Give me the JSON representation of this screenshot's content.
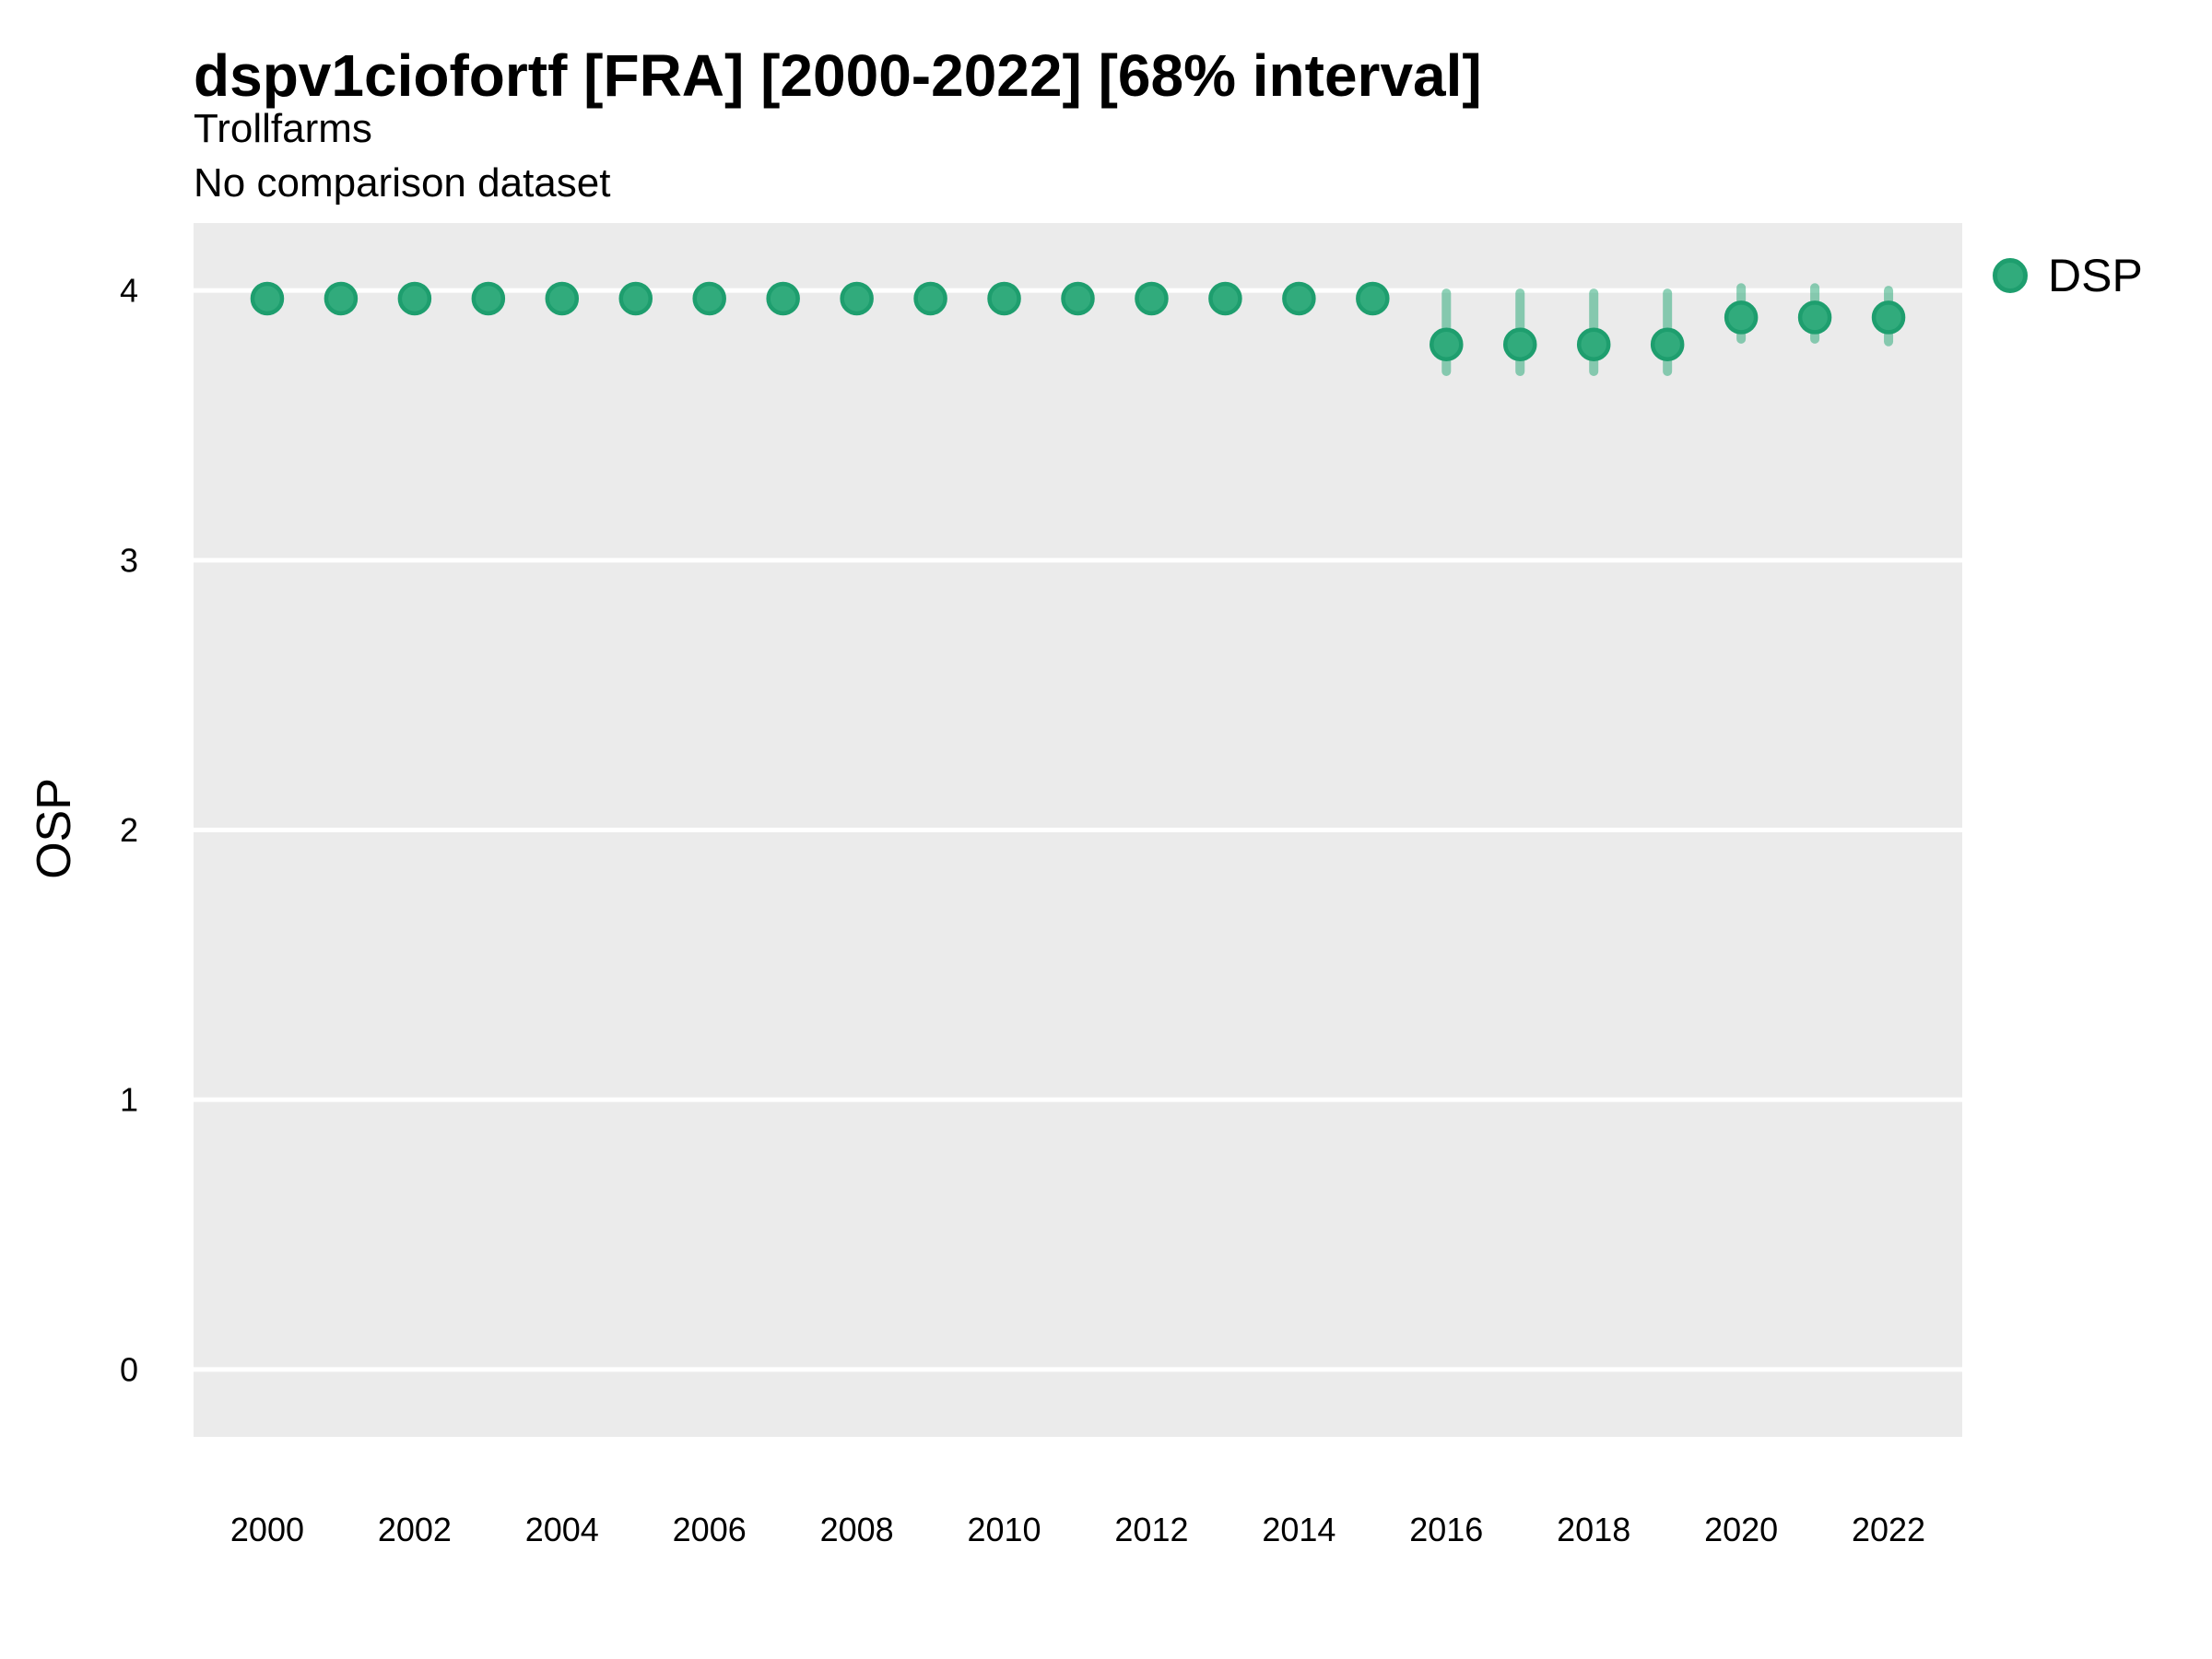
{
  "header": {
    "title": "dspv1ciofortf [FRA] [2000-2022] [68% interval]",
    "subtitle": "Trollfarms",
    "note": "No comparison dataset"
  },
  "legend": {
    "label": "DSP",
    "position": "right"
  },
  "colors": {
    "point_fill": "#31AB7C",
    "point_stroke": "#1E9E6E",
    "interval_line": "rgba(49,171,124,0.55)",
    "plot_background": "#EBEBEB",
    "gridline": "#FFFFFF",
    "text": "#000000"
  },
  "chart_data": {
    "type": "scatter",
    "title": "dspv1ciofortf [FRA] [2000-2022] [68% interval]",
    "subtitle": "Trollfarms",
    "note": "No comparison dataset",
    "xlabel": "",
    "ylabel": "OSP",
    "x_domain": [
      1999,
      2023
    ],
    "y_domain": [
      -0.25,
      4.25
    ],
    "x_ticks": [
      2000,
      2002,
      2004,
      2006,
      2008,
      2010,
      2012,
      2014,
      2016,
      2018,
      2020,
      2022
    ],
    "y_ticks": [
      0,
      1,
      2,
      3,
      4
    ],
    "grid": "major-horizontal-only",
    "legend_position": "right",
    "series": [
      {
        "name": "DSP",
        "marker": "circle",
        "interval_label": "68% interval",
        "x": [
          2000,
          2001,
          2002,
          2003,
          2004,
          2005,
          2006,
          2007,
          2008,
          2009,
          2010,
          2011,
          2012,
          2013,
          2014,
          2015,
          2016,
          2017,
          2018,
          2019,
          2020,
          2021,
          2022
        ],
        "y": [
          3.97,
          3.97,
          3.97,
          3.97,
          3.97,
          3.97,
          3.97,
          3.97,
          3.97,
          3.97,
          3.97,
          3.97,
          3.97,
          3.97,
          3.97,
          3.97,
          3.8,
          3.8,
          3.8,
          3.8,
          3.9,
          3.9,
          3.9
        ],
        "lo": [
          3.97,
          3.97,
          3.97,
          3.97,
          3.97,
          3.97,
          3.97,
          3.97,
          3.97,
          3.97,
          3.97,
          3.97,
          3.97,
          3.97,
          3.97,
          3.97,
          3.7,
          3.7,
          3.7,
          3.7,
          3.82,
          3.82,
          3.81
        ],
        "hi": [
          3.97,
          3.97,
          3.97,
          3.97,
          3.97,
          3.97,
          3.97,
          3.97,
          3.97,
          3.97,
          3.97,
          3.97,
          3.97,
          3.97,
          3.97,
          3.97,
          3.99,
          3.99,
          3.99,
          3.99,
          4.01,
          4.01,
          4.0
        ]
      }
    ]
  }
}
